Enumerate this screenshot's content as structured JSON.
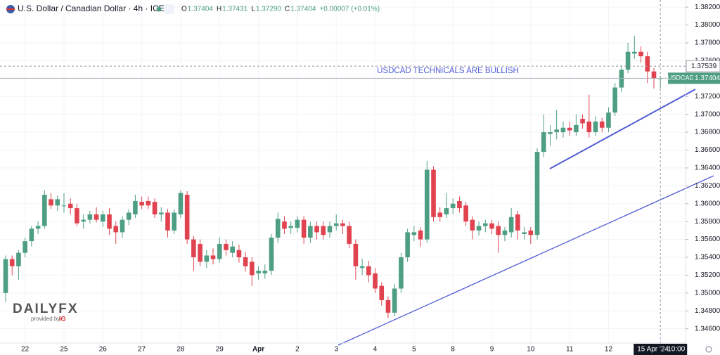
{
  "chart_data": {
    "type": "candlestick",
    "title": "U.S. Dollar / Canadian Dollar · 4h · ICE",
    "ohlc_legend": [
      {
        "key": "O",
        "value": "1.37404"
      },
      {
        "key": "H",
        "value": "1.37431"
      },
      {
        "key": "L",
        "value": "1.37290"
      },
      {
        "key": "C",
        "value": "1.37404"
      }
    ],
    "change": "+0.00007 (+0.01%)",
    "annotation": "USDCAD TECHNICALS ARE BULLISH",
    "categories": [
      null,
      null,
      null,
      "22",
      null,
      null,
      null,
      null,
      null,
      "25",
      null,
      null,
      null,
      null,
      null,
      "26",
      null,
      null,
      null,
      null,
      null,
      "27",
      null,
      null,
      null,
      null,
      null,
      "28",
      null,
      null,
      null,
      null,
      null,
      "29",
      null,
      null,
      null,
      null,
      null,
      "Apr",
      null,
      null,
      null,
      null,
      null,
      "2",
      null,
      null,
      null,
      null,
      null,
      "3",
      null,
      null,
      null,
      null,
      null,
      "4",
      null,
      null,
      null,
      null,
      null,
      "5",
      null,
      null,
      null,
      null,
      null,
      "8",
      null,
      null,
      null,
      null,
      null,
      "9",
      null,
      null,
      null,
      null,
      null,
      "10",
      null,
      null,
      null,
      null,
      null,
      "11",
      null,
      null,
      null,
      null,
      null,
      "12",
      null,
      null,
      null,
      null,
      null,
      null,
      null,
      null
    ],
    "open": [
      1.35,
      1.3538,
      1.353,
      1.3545,
      1.3558,
      1.3572,
      1.3575,
      1.3605,
      1.3598,
      1.3598,
      1.36,
      1.3595,
      1.358,
      1.3582,
      1.3588,
      1.358,
      1.3588,
      1.3575,
      1.3568,
      1.3582,
      1.3588,
      1.3602,
      1.3603,
      1.3602,
      1.3588,
      1.359,
      1.357,
      1.3588,
      1.361,
      1.356,
      1.3555,
      1.3535,
      1.3542,
      1.3538,
      1.3555,
      1.3545,
      1.3548,
      1.354,
      1.3535,
      1.3522,
      1.3522,
      1.3525,
      1.3562,
      1.358,
      1.3573,
      1.3573,
      1.3582,
      1.3562,
      1.3575,
      1.3575,
      1.3568,
      1.3575,
      1.3578,
      1.3575,
      1.3555,
      1.3528,
      1.353,
      1.3522,
      1.3508,
      1.3492,
      1.3478,
      1.3505,
      1.354,
      1.3565,
      1.357,
      1.356,
      1.3638,
      1.359,
      1.3588,
      1.3595,
      1.3603,
      1.3598,
      1.3582,
      1.357,
      1.3575,
      1.3578,
      1.3575,
      1.3565,
      1.3568,
      1.3588,
      1.3566,
      1.357,
      1.3565,
      1.3658,
      1.3678,
      1.368,
      1.368,
      1.3685,
      1.368,
      1.3695,
      1.3692,
      1.368,
      1.3692,
      1.3685,
      1.3702,
      1.373,
      1.375,
      1.3768,
      1.377,
      1.3765,
      1.3748,
      1.37404
    ],
    "high": [
      1.3542,
      1.3542,
      1.3548,
      1.3562,
      1.3575,
      1.358,
      1.3615,
      1.3612,
      1.3609,
      1.3612,
      1.3606,
      1.36,
      1.3588,
      1.3592,
      1.3596,
      1.3592,
      1.3595,
      1.358,
      1.3586,
      1.3594,
      1.361,
      1.3608,
      1.3608,
      1.3606,
      1.3596,
      1.3594,
      1.3594,
      1.3615,
      1.3614,
      1.3564,
      1.356,
      1.3548,
      1.355,
      1.3562,
      1.356,
      1.3558,
      1.3554,
      1.3546,
      1.354,
      1.353,
      1.3532,
      1.3566,
      1.359,
      1.3586,
      1.358,
      1.3586,
      1.3586,
      1.358,
      1.358,
      1.358,
      1.358,
      1.3588,
      1.3582,
      1.358,
      1.356,
      1.3538,
      1.3536,
      1.3528,
      1.3512,
      1.3496,
      1.351,
      1.3545,
      1.3572,
      1.3575,
      1.3574,
      1.3648,
      1.3642,
      1.3596,
      1.3612,
      1.3606,
      1.3608,
      1.3602,
      1.3586,
      1.358,
      1.3582,
      1.3582,
      1.358,
      1.3574,
      1.3595,
      1.3592,
      1.3574,
      1.3574,
      1.3662,
      1.37,
      1.3688,
      1.3705,
      1.3692,
      1.3692,
      1.37,
      1.37,
      1.3722,
      1.3698,
      1.3696,
      1.3708,
      1.3735,
      1.3755,
      1.378,
      1.3788,
      1.3776,
      1.377,
      1.3752,
      1.37431
    ],
    "low": [
      1.349,
      1.352,
      1.3515,
      1.354,
      1.3552,
      1.3566,
      1.3572,
      1.3594,
      1.3592,
      1.359,
      1.3588,
      1.3575,
      1.3572,
      1.3578,
      1.3579,
      1.3574,
      1.3565,
      1.3555,
      1.3562,
      1.3576,
      1.3584,
      1.3594,
      1.3594,
      1.3584,
      1.358,
      1.3562,
      1.3566,
      1.3584,
      1.3555,
      1.3525,
      1.353,
      1.3528,
      1.3532,
      1.3534,
      1.3542,
      1.354,
      1.3534,
      1.3524,
      1.3508,
      1.3515,
      1.3516,
      1.352,
      1.3556,
      1.3566,
      1.3566,
      1.3568,
      1.3555,
      1.3556,
      1.356,
      1.356,
      1.3562,
      1.357,
      1.3566,
      1.355,
      1.3515,
      1.352,
      1.3512,
      1.35,
      1.3486,
      1.3472,
      1.3474,
      1.35,
      1.3535,
      1.3558,
      1.3552,
      1.3556,
      1.358,
      1.358,
      1.3584,
      1.3588,
      1.359,
      1.3575,
      1.356,
      1.3564,
      1.3568,
      1.3566,
      1.3545,
      1.3558,
      1.3562,
      1.356,
      1.356,
      1.3555,
      1.356,
      1.3652,
      1.3665,
      1.3672,
      1.3674,
      1.3676,
      1.3676,
      1.3684,
      1.3674,
      1.3676,
      1.368,
      1.368,
      1.3698,
      1.3725,
      1.3746,
      1.3762,
      1.3758,
      1.3735,
      1.3729,
      1.3729
    ],
    "close": [
      1.3538,
      1.353,
      1.3545,
      1.3558,
      1.3572,
      1.3575,
      1.361,
      1.3598,
      1.3605,
      1.3598,
      1.3595,
      1.3578,
      1.3582,
      1.3588,
      1.3582,
      1.3588,
      1.3572,
      1.3568,
      1.3582,
      1.359,
      1.3603,
      1.3598,
      1.3598,
      1.3588,
      1.359,
      1.357,
      1.359,
      1.3612,
      1.356,
      1.354,
      1.3535,
      1.3542,
      1.3538,
      1.3555,
      1.3548,
      1.3552,
      1.354,
      1.353,
      1.352,
      1.3525,
      1.3525,
      1.3562,
      1.3583,
      1.3572,
      1.3575,
      1.3582,
      1.3562,
      1.3575,
      1.3568,
      1.3565,
      1.3575,
      1.3578,
      1.3575,
      1.3555,
      1.353,
      1.353,
      1.352,
      1.3505,
      1.3492,
      1.3478,
      1.3505,
      1.354,
      1.3568,
      1.3568,
      1.356,
      1.3638,
      1.3585,
      1.3585,
      1.3595,
      1.36,
      1.3595,
      1.358,
      1.357,
      1.3575,
      1.3578,
      1.3572,
      1.3565,
      1.357,
      1.3585,
      1.357,
      1.3568,
      1.3565,
      1.3658,
      1.368,
      1.368,
      1.3683,
      1.3685,
      1.3682,
      1.3688,
      1.369,
      1.368,
      1.3692,
      1.3685,
      1.3702,
      1.373,
      1.375,
      1.377,
      1.377,
      1.3765,
      1.3748,
      1.374,
      1.37404
    ],
    "up_color": "#4e9e84",
    "down_color": "#e0434f",
    "ylim": [
      1.3444,
      1.3828
    ],
    "yticks": [
      {
        "value": 1.346,
        "label": "1.34600"
      },
      {
        "value": 1.348,
        "label": "1.34800"
      },
      {
        "value": 1.35,
        "label": "1.35000"
      },
      {
        "value": 1.352,
        "label": "1.35200"
      },
      {
        "value": 1.354,
        "label": "1.35400"
      },
      {
        "value": 1.356,
        "label": "1.35600"
      },
      {
        "value": 1.358,
        "label": "1.35800"
      },
      {
        "value": 1.36,
        "label": "1.36000"
      },
      {
        "value": 1.362,
        "label": "1.36200"
      },
      {
        "value": 1.364,
        "label": "1.36400"
      },
      {
        "value": 1.366,
        "label": "1.36600"
      },
      {
        "value": 1.368,
        "label": "1.36800"
      },
      {
        "value": 1.37,
        "label": "1.37000"
      },
      {
        "value": 1.372,
        "label": "1.37200"
      },
      {
        "value": 1.374,
        "label": "1.37400"
      },
      {
        "value": 1.376,
        "label": "1.37600"
      },
      {
        "value": 1.378,
        "label": "1.37800"
      },
      {
        "value": 1.38,
        "label": "1.38000"
      },
      {
        "value": 1.382,
        "label": "1.38200"
      }
    ],
    "grid": true,
    "crosshair": {
      "price": 1.37539,
      "date_label": "15 Apr '24",
      "time_label": "10:00"
    },
    "last_price": {
      "symbol": "USDCAD",
      "value": 1.37404
    }
  },
  "logo": {
    "brand": "DAILYFX",
    "provided_by": "provided by",
    "ig": "IG"
  }
}
